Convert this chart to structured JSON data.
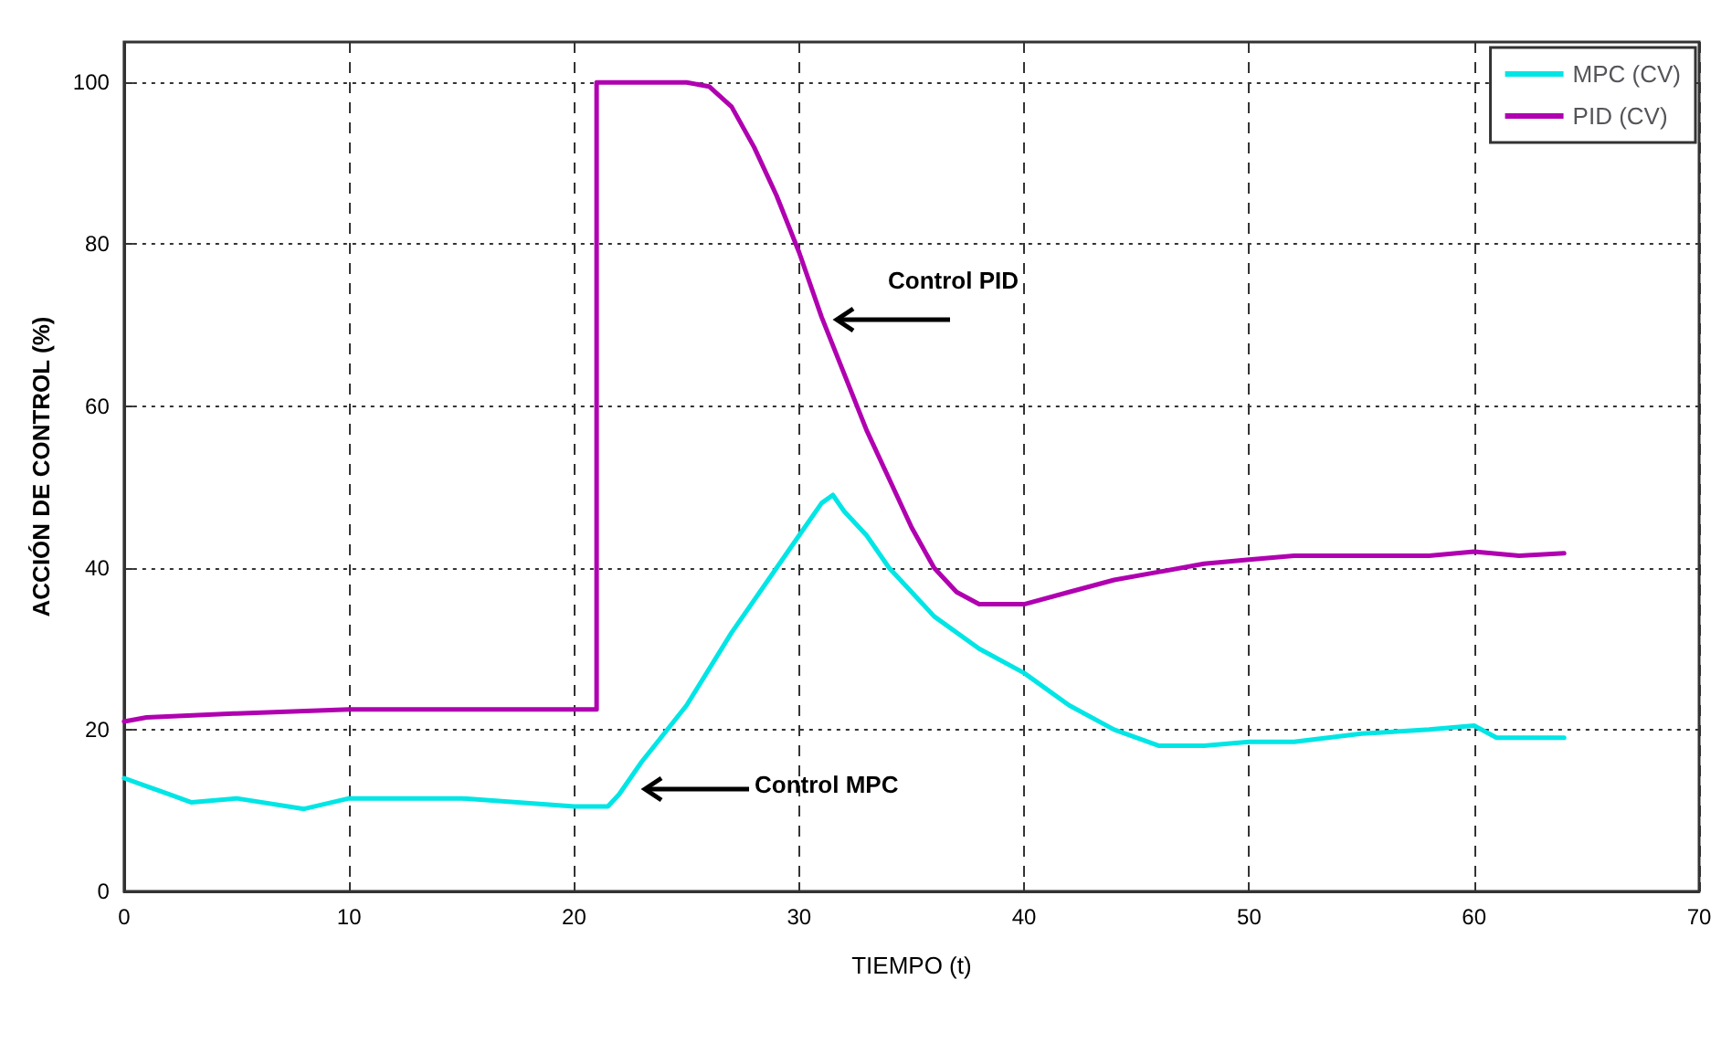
{
  "chart_data": {
    "type": "line",
    "xlabel": "TIEMPO (t)",
    "ylabel": "ACCIÓN DE CONTROL (%)",
    "xlim": [
      0,
      70
    ],
    "xticks": [
      0,
      10,
      20,
      30,
      40,
      50,
      60,
      70
    ],
    "ylim": [
      0,
      105
    ],
    "yticks": [
      0,
      20,
      40,
      60,
      80,
      100
    ],
    "grid": true,
    "legend": "top right",
    "marker": "none",
    "line_style": "solid",
    "series": [
      {
        "name": "MPC (CV)",
        "color": "#00e5e5",
        "x": [
          0,
          1,
          2,
          3,
          5,
          8,
          10,
          15,
          20,
          21.5,
          22,
          23,
          25,
          27,
          29,
          30,
          31,
          31.5,
          32,
          33,
          34,
          35,
          36,
          38,
          40,
          42,
          44,
          46,
          48,
          50,
          52,
          55,
          58,
          60,
          61,
          64
        ],
        "values": [
          14,
          13,
          12,
          11,
          11.5,
          10.2,
          11.5,
          11.5,
          10.5,
          10.5,
          12,
          16,
          23,
          32,
          40,
          44,
          48,
          49,
          47,
          44,
          40,
          37,
          34,
          30,
          27,
          23,
          20,
          18,
          18,
          18.5,
          18.5,
          19.5,
          20,
          20.5,
          19,
          19
        ]
      },
      {
        "name": "PID (CV)",
        "color": "#b000b0",
        "x": [
          0,
          1,
          5,
          10,
          20,
          21,
          21,
          25,
          26,
          27,
          28,
          29,
          30,
          31,
          32,
          33,
          34,
          35,
          36,
          37,
          38,
          40,
          42,
          44,
          46,
          48,
          50,
          52,
          55,
          58,
          60,
          62,
          64
        ],
        "values": [
          21,
          21.5,
          22,
          22.5,
          22.5,
          22.5,
          100,
          100,
          99.5,
          97,
          92,
          86,
          79,
          71,
          64,
          57,
          51,
          45,
          40,
          37,
          35.5,
          35.5,
          37,
          38.5,
          39.5,
          40.5,
          41,
          41.5,
          41.5,
          41.5,
          42,
          41.5,
          41.8
        ]
      }
    ],
    "annotations": [
      "Control PID",
      "Control MPC"
    ]
  }
}
